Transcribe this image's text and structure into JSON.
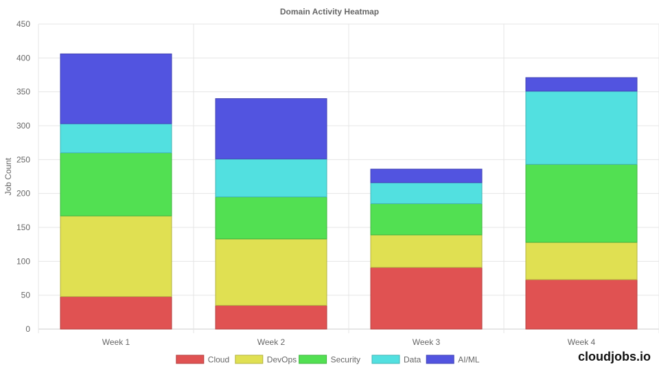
{
  "chart_data": {
    "type": "bar",
    "stacked": true,
    "title": "Domain Activity Heatmap",
    "xlabel": "",
    "ylabel": "Job Count",
    "ylim": [
      0,
      450
    ],
    "yticks": [
      0,
      50,
      100,
      150,
      200,
      250,
      300,
      350,
      400,
      450
    ],
    "grid": true,
    "legend_position": "bottom",
    "categories": [
      "Week 1",
      "Week 2",
      "Week 3",
      "Week 4"
    ],
    "series": [
      {
        "name": "Cloud",
        "color": "#e05252",
        "values": [
          48,
          35,
          91,
          73
        ]
      },
      {
        "name": "DevOps",
        "color": "#e0e052",
        "values": [
          119,
          98,
          48,
          55
        ]
      },
      {
        "name": "Security",
        "color": "#52e052",
        "values": [
          93,
          62,
          46,
          115
        ]
      },
      {
        "name": "Data",
        "color": "#52e0e0",
        "values": [
          43,
          56,
          31,
          108
        ]
      },
      {
        "name": "AI/ML",
        "color": "#5254e0",
        "values": [
          103,
          89,
          20,
          20
        ]
      }
    ]
  },
  "brand": "cloudjobs.io"
}
